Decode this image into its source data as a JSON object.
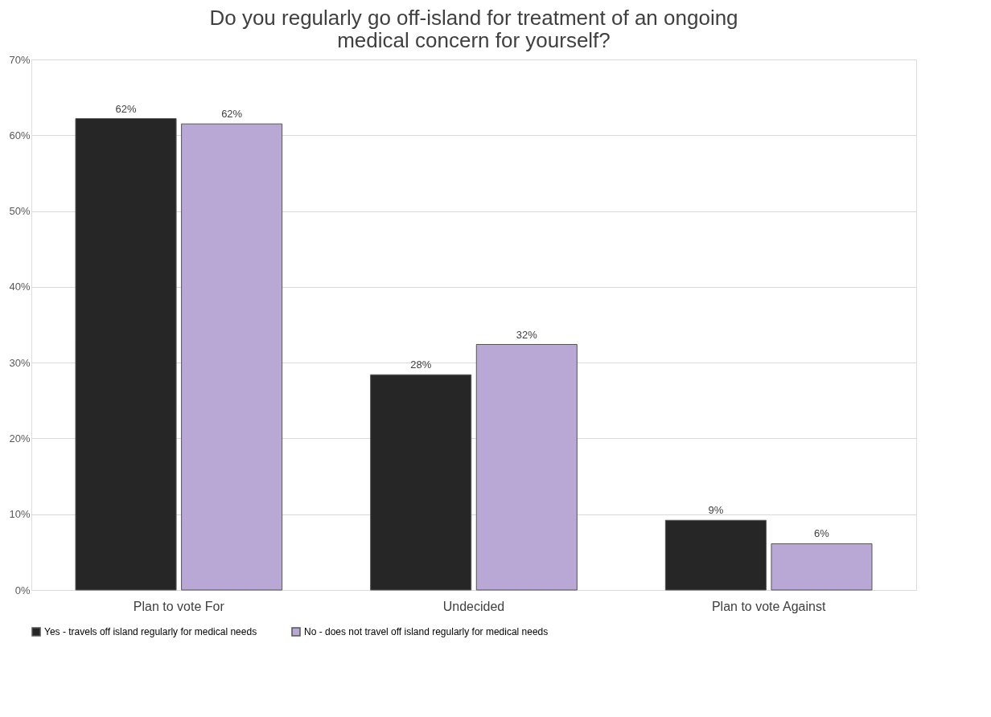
{
  "chart_data": {
    "type": "bar",
    "title": "Do you regularly go off-island for treatment of an ongoing medical concern for yourself?",
    "categories": [
      "Plan to vote For",
      "Undecided",
      "Plan to vote Against"
    ],
    "series": [
      {
        "name": "Yes - travels off island regularly for medical needs",
        "color": "#262626",
        "values": [
          62.2,
          28.4,
          9.2
        ],
        "value_labels": [
          "62%",
          "28%",
          "9%"
        ]
      },
      {
        "name": "No - does not travel off island regularly for medical needs",
        "color": "#b9a7d6",
        "values": [
          61.5,
          32.4,
          6.1
        ],
        "value_labels": [
          "62%",
          "32%",
          "6%"
        ]
      }
    ],
    "ylim": [
      0,
      70
    ],
    "yticks": [
      {
        "value": 0,
        "label": "0%"
      },
      {
        "value": 10,
        "label": "10%"
      },
      {
        "value": 20,
        "label": "20%"
      },
      {
        "value": 30,
        "label": "30%"
      },
      {
        "value": 40,
        "label": "40%"
      },
      {
        "value": 50,
        "label": "50%"
      },
      {
        "value": 60,
        "label": "60%"
      },
      {
        "value": 70,
        "label": "70%"
      }
    ],
    "grid": "y",
    "legend": "bottom"
  }
}
